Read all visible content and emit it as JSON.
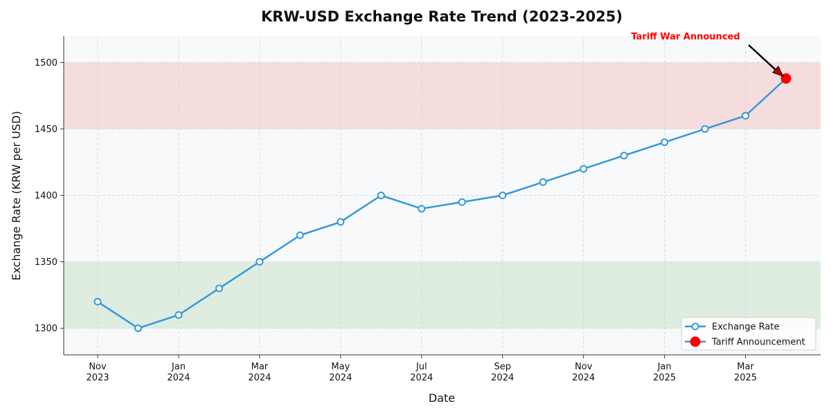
{
  "chart_data": {
    "type": "line",
    "title": "KRW-USD Exchange Rate Trend (2023-2025)",
    "xlabel": "Date",
    "ylabel": "Exchange Rate (KRW per USD)",
    "ylim": [
      1280,
      1520
    ],
    "yticks": [
      1300,
      1350,
      1400,
      1450,
      1500
    ],
    "x": [
      "2023-11",
      "2023-12",
      "2024-01",
      "2024-02",
      "2024-03",
      "2024-04",
      "2024-05",
      "2024-06",
      "2024-07",
      "2024-08",
      "2024-09",
      "2024-10",
      "2024-11",
      "2024-12",
      "2025-01",
      "2025-02",
      "2025-03",
      "2025-04"
    ],
    "xticks": [
      {
        "month": "Nov",
        "year": "2023",
        "index": 0
      },
      {
        "month": "Jan",
        "year": "2024",
        "index": 2
      },
      {
        "month": "Mar",
        "year": "2024",
        "index": 4
      },
      {
        "month": "May",
        "year": "2024",
        "index": 6
      },
      {
        "month": "Jul",
        "year": "2024",
        "index": 8
      },
      {
        "month": "Sep",
        "year": "2024",
        "index": 10
      },
      {
        "month": "Nov",
        "year": "2024",
        "index": 12
      },
      {
        "month": "Jan",
        "year": "2025",
        "index": 14
      },
      {
        "month": "Mar",
        "year": "2025",
        "index": 16
      }
    ],
    "series": [
      {
        "name": "Exchange Rate",
        "color": "#3498db",
        "values": [
          1320,
          1300,
          1310,
          1330,
          1350,
          1370,
          1380,
          1400,
          1390,
          1395,
          1400,
          1410,
          1420,
          1430,
          1440,
          1450,
          1460,
          1488
        ]
      }
    ],
    "highlight": {
      "name": "Tariff Announcement",
      "index": 17,
      "value": 1488,
      "color": "#ff0000"
    },
    "bands": [
      {
        "from": 1450,
        "to": 1500,
        "color": "#f2c4c4"
      },
      {
        "from": 1300,
        "to": 1350,
        "color": "#c9e3c9"
      }
    ],
    "annotation": {
      "text": "Tariff War Announced",
      "color": "#ff0000",
      "target_index": 17
    },
    "legend": {
      "placement": "bottom-right",
      "entries": [
        "Exchange Rate",
        "Tariff Announcement"
      ]
    },
    "grid": true
  }
}
